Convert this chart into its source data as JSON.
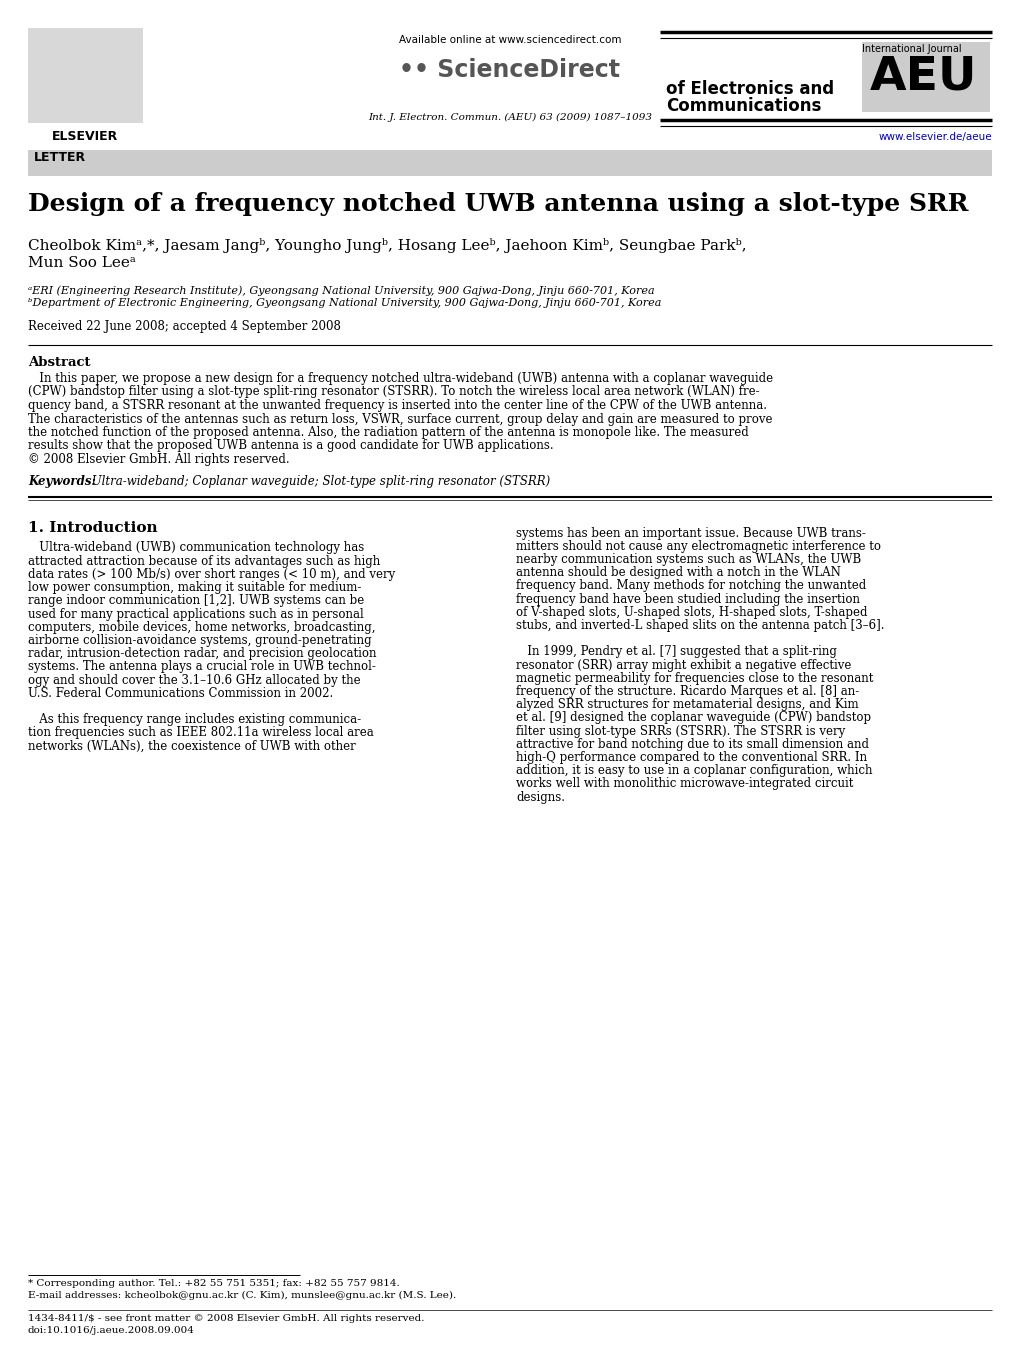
{
  "bg_color": "#ffffff",
  "header_logo_text": "ELSEVIER",
  "available_online_text": "Available online at www.sciencedirect.com",
  "sciencedirect_text": "ScienceDirect",
  "journal_line1": "International Journal",
  "journal_line2": "AEU",
  "journal_line3": "of Electronics and",
  "journal_line4": "Communications",
  "journal_ref": "Int. J. Electron. Commun. (AEU) 63 (2009) 1087–1093",
  "journal_website": "www.elsevier.de/aeue",
  "letter_label": "LETTER",
  "title": "Design of a frequency notched UWB antenna using a slot-type SRR",
  "authors_line1": "Cheolbok Kimᵃ,*, Jaesam Jangᵇ, Youngho Jungᵇ, Hosang Leeᵇ, Jaehoon Kimᵇ, Seungbae Parkᵇ,",
  "authors_line2": "Mun Soo Leeᵃ",
  "affil_a": "ᵃERI (Engineering Research Institute), Gyeongsang National University, 900 Gajwa-Dong, Jinju 660-701, Korea",
  "affil_b": "ᵇDepartment of Electronic Engineering, Gyeongsang National University, 900 Gajwa-Dong, Jinju 660-701, Korea",
  "received": "Received 22 June 2008; accepted 4 September 2008",
  "abstract_title": "Abstract",
  "abstract_lines": [
    "   In this paper, we propose a new design for a frequency notched ultra-wideband (UWB) antenna with a coplanar waveguide",
    "(CPW) bandstop filter using a slot-type split-ring resonator (STSRR). To notch the wireless local area network (WLAN) fre-",
    "quency band, a STSRR resonant at the unwanted frequency is inserted into the center line of the CPW of the UWB antenna.",
    "The characteristics of the antennas such as return loss, VSWR, surface current, group delay and gain are measured to prove",
    "the notched function of the proposed antenna. Also, the radiation pattern of the antenna is monopole like. The measured",
    "results show that the proposed UWB antenna is a good candidate for UWB applications.",
    "© 2008 Elsevier GmbH. All rights reserved."
  ],
  "keywords_label": "Keywords:",
  "keywords_text": " Ultra-wideband; Coplanar waveguide; Slot-type split-ring resonator (STSRR)",
  "section1_title": "1. Introduction",
  "col1_lines": [
    "   Ultra-wideband (UWB) communication technology has",
    "attracted attraction because of its advantages such as high",
    "data rates (> 100 Mb/s) over short ranges (< 10 m), and very",
    "low power consumption, making it suitable for medium-",
    "range indoor communication [1,2]. UWB systems can be",
    "used for many practical applications such as in personal",
    "computers, mobile devices, home networks, broadcasting,",
    "airborne collision-avoidance systems, ground-penetrating",
    "radar, intrusion-detection radar, and precision geolocation",
    "systems. The antenna plays a crucial role in UWB technol-",
    "ogy and should cover the 3.1–10.6 GHz allocated by the",
    "U.S. Federal Communications Commission in 2002.",
    "",
    "   As this frequency range includes existing communica-",
    "tion frequencies such as IEEE 802.11a wireless local area",
    "networks (WLANs), the coexistence of UWB with other"
  ],
  "col2_lines": [
    "systems has been an important issue. Because UWB trans-",
    "mitters should not cause any electromagnetic interference to",
    "nearby communication systems such as WLANs, the UWB",
    "antenna should be designed with a notch in the WLAN",
    "frequency band. Many methods for notching the unwanted",
    "frequency band have been studied including the insertion",
    "of V-shaped slots, U-shaped slots, H-shaped slots, T-shaped",
    "stubs, and inverted-L shaped slits on the antenna patch [3–6].",
    "",
    "   In 1999, Pendry et al. [7] suggested that a split-ring",
    "resonator (SRR) array might exhibit a negative effective",
    "magnetic permeability for frequencies close to the resonant",
    "frequency of the structure. Ricardo Marques et al. [8] an-",
    "alyzed SRR structures for metamaterial designs, and Kim",
    "et al. [9] designed the coplanar waveguide (CPW) bandstop",
    "filter using slot-type SRRs (STSRR). The STSRR is very",
    "attractive for band notching due to its small dimension and",
    "high-Q performance compared to the conventional SRR. In",
    "addition, it is easy to use in a coplanar configuration, which",
    "works well with monolithic microwave-integrated circuit",
    "designs."
  ],
  "footnote_corr": "* Corresponding author. Tel.: +82 55 751 5351; fax: +82 55 757 9814.",
  "footnote_email": "E-mail addresses: kcheolbok@gnu.ac.kr (C. Kim), munslee@gnu.ac.kr (M.S. Lee).",
  "footnote_ms": "(M.S. Lee).",
  "footnote_issn": "1434-8411/$ - see front matter © 2008 Elsevier GmbH. All rights reserved.",
  "footnote_doi": "doi:10.1016/j.aeue.2008.09.004"
}
